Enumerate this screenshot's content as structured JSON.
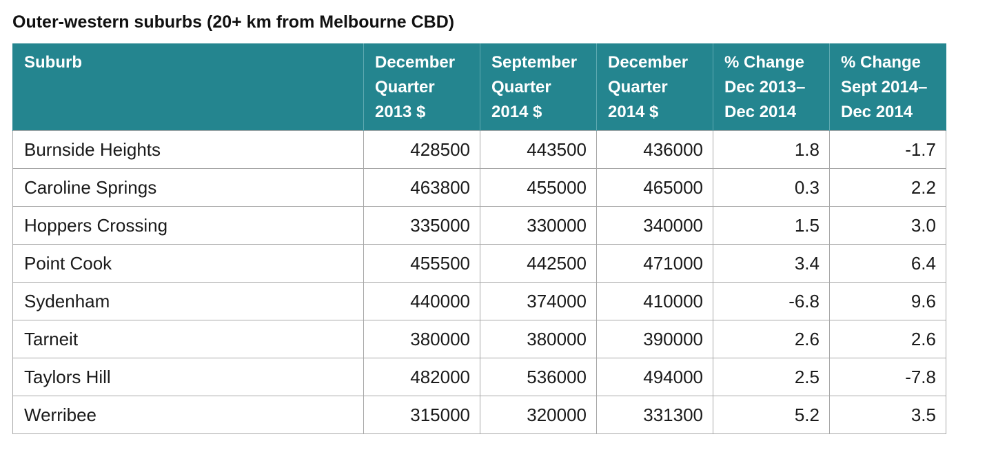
{
  "title": "Outer-western suburbs (20+ km from Melbourne CBD)",
  "chart_data": {
    "type": "table",
    "title": "Outer-western suburbs (20+ km from Melbourne CBD)",
    "columns": [
      {
        "lines": [
          "Suburb"
        ]
      },
      {
        "lines": [
          "December",
          "Quarter",
          "2013 $"
        ]
      },
      {
        "lines": [
          "September",
          "Quarter",
          "2014 $"
        ]
      },
      {
        "lines": [
          "December",
          "Quarter",
          "2014 $"
        ]
      },
      {
        "lines": [
          "% Change",
          "Dec 2013–",
          "Dec 2014"
        ]
      },
      {
        "lines": [
          "% Change",
          "Sept 2014–",
          "Dec 2014"
        ]
      }
    ],
    "rows": [
      [
        "Burnside Heights",
        "428500",
        "443500",
        "436000",
        "1.8",
        "-1.7"
      ],
      [
        "Caroline Springs",
        "463800",
        "455000",
        "465000",
        "0.3",
        "2.2"
      ],
      [
        "Hoppers Crossing",
        "335000",
        "330000",
        "340000",
        "1.5",
        "3.0"
      ],
      [
        "Point Cook",
        "455500",
        "442500",
        "471000",
        "3.4",
        "6.4"
      ],
      [
        "Sydenham",
        "440000",
        "374000",
        "410000",
        "-6.8",
        "9.6"
      ],
      [
        "Tarneit",
        "380000",
        "380000",
        "390000",
        "2.6",
        "2.6"
      ],
      [
        "Taylors Hill",
        "482000",
        "536000",
        "494000",
        "2.5",
        "-7.8"
      ],
      [
        "Werribee",
        "315000",
        "320000",
        "331300",
        "5.2",
        "3.5"
      ]
    ]
  },
  "colors": {
    "header_background": "#24858f",
    "header_text": "#ffffff",
    "grid_lines": "#a7a7a7"
  }
}
